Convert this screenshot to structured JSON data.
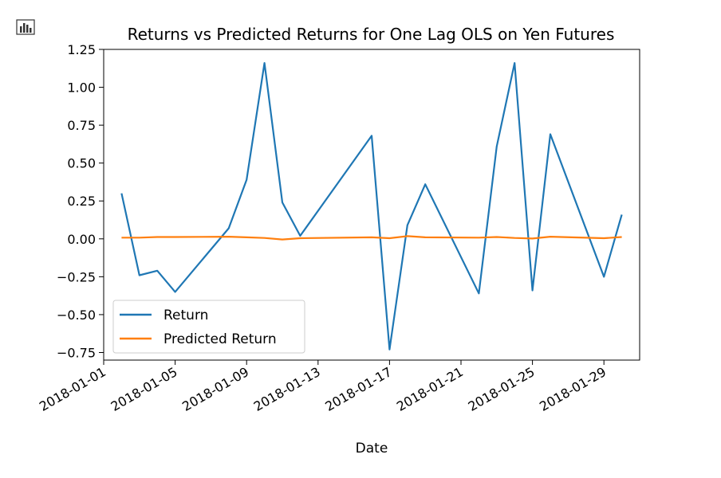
{
  "toolbar": {
    "icon": "bar-chart-icon"
  },
  "chart_data": {
    "type": "line",
    "title": "Returns vs Predicted Returns for One Lag OLS on Yen Futures",
    "xlabel": "Date",
    "ylabel": "",
    "grid": false,
    "legend_position": "lower-left",
    "xlim": [
      "2018-01-01",
      "2018-01-31"
    ],
    "ylim": [
      -0.8,
      1.25
    ],
    "x_ticks": [
      "2018-01-01",
      "2018-01-05",
      "2018-01-09",
      "2018-01-13",
      "2018-01-17",
      "2018-01-21",
      "2018-01-25",
      "2018-01-29"
    ],
    "y_ticks": [
      1.25,
      1.0,
      0.75,
      0.5,
      0.25,
      0.0,
      -0.25,
      -0.5,
      -0.75
    ],
    "y_tick_labels": [
      "1.25",
      "1.00",
      "0.75",
      "0.50",
      "0.25",
      "0.00",
      "−0.25",
      "−0.50",
      "−0.75"
    ],
    "series": [
      {
        "name": "Return",
        "color": "#1f77b4",
        "points": [
          [
            "2018-01-02",
            0.3
          ],
          [
            "2018-01-03",
            -0.24
          ],
          [
            "2018-01-04",
            -0.21
          ],
          [
            "2018-01-05",
            -0.35
          ],
          [
            "2018-01-08",
            0.07
          ],
          [
            "2018-01-09",
            0.39
          ],
          [
            "2018-01-10",
            1.16
          ],
          [
            "2018-01-11",
            0.24
          ],
          [
            "2018-01-12",
            0.02
          ],
          [
            "2018-01-16",
            0.68
          ],
          [
            "2018-01-17",
            -0.73
          ],
          [
            "2018-01-18",
            0.09
          ],
          [
            "2018-01-19",
            0.36
          ],
          [
            "2018-01-22",
            -0.36
          ],
          [
            "2018-01-23",
            0.61
          ],
          [
            "2018-01-24",
            1.16
          ],
          [
            "2018-01-25",
            -0.34
          ],
          [
            "2018-01-26",
            0.69
          ],
          [
            "2018-01-29",
            -0.25
          ],
          [
            "2018-01-30",
            0.16
          ]
        ]
      },
      {
        "name": "Predicted Return",
        "color": "#ff7f0e",
        "points": [
          [
            "2018-01-02",
            0.008
          ],
          [
            "2018-01-03",
            0.008
          ],
          [
            "2018-01-04",
            0.012
          ],
          [
            "2018-01-05",
            0.012
          ],
          [
            "2018-01-08",
            0.014
          ],
          [
            "2018-01-09",
            0.01
          ],
          [
            "2018-01-10",
            0.006
          ],
          [
            "2018-01-11",
            -0.004
          ],
          [
            "2018-01-12",
            0.004
          ],
          [
            "2018-01-16",
            0.01
          ],
          [
            "2018-01-17",
            0.004
          ],
          [
            "2018-01-18",
            0.018
          ],
          [
            "2018-01-19",
            0.01
          ],
          [
            "2018-01-22",
            0.008
          ],
          [
            "2018-01-23",
            0.012
          ],
          [
            "2018-01-24",
            0.006
          ],
          [
            "2018-01-25",
            0.002
          ],
          [
            "2018-01-26",
            0.014
          ],
          [
            "2018-01-29",
            0.004
          ],
          [
            "2018-01-30",
            0.012
          ]
        ]
      }
    ]
  }
}
